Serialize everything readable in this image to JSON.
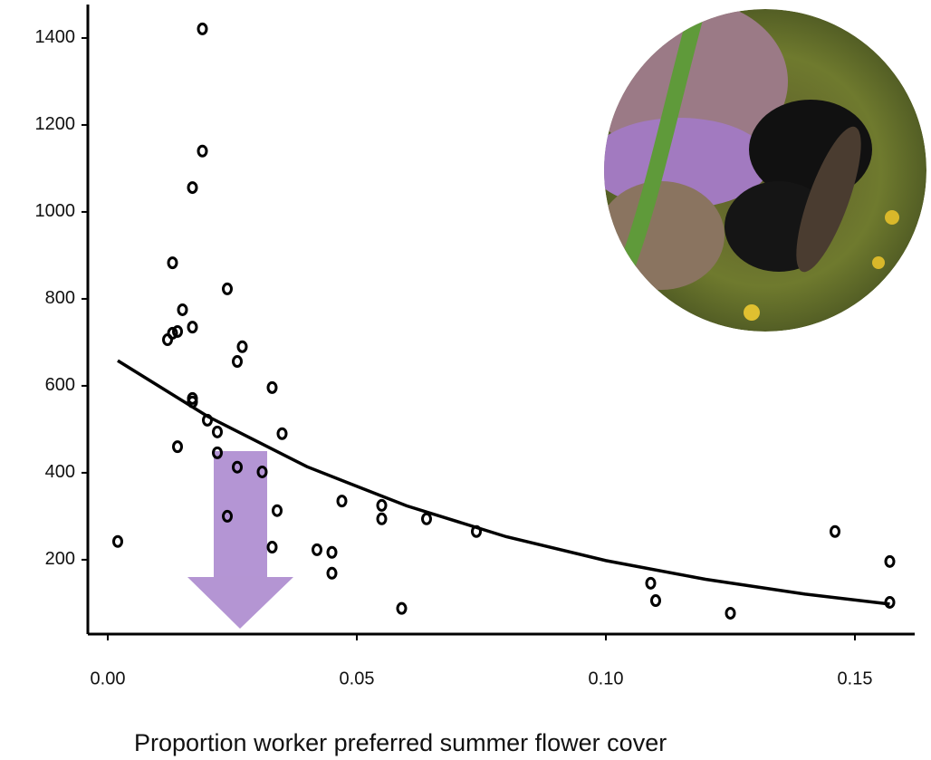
{
  "chart_data": {
    "type": "scatter",
    "x_label": "Proportion worker preferred summer flower cover",
    "x": [
      0.002,
      0.019,
      0.019,
      0.017,
      0.013,
      0.024,
      0.015,
      0.012,
      0.013,
      0.014,
      0.017,
      0.027,
      0.026,
      0.033,
      0.017,
      0.017,
      0.02,
      0.022,
      0.035,
      0.014,
      0.022,
      0.026,
      0.031,
      0.047,
      0.055,
      0.055,
      0.034,
      0.024,
      0.064,
      0.074,
      0.033,
      0.042,
      0.045,
      0.045,
      0.059,
      0.109,
      0.11,
      0.125,
      0.146,
      0.157,
      0.157
    ],
    "values": [
      242,
      1421,
      1140,
      1056,
      883,
      823,
      775,
      706,
      721,
      725,
      735,
      690,
      656,
      596,
      571,
      563,
      521,
      494,
      490,
      460,
      446,
      413,
      402,
      335,
      325,
      294,
      313,
      300,
      294,
      265,
      229,
      223,
      217,
      169,
      88,
      146,
      106,
      77,
      265,
      196,
      102
    ],
    "color": "#000000",
    "fit": {
      "x": [
        0.002,
        0.02,
        0.04,
        0.06,
        0.08,
        0.1,
        0.12,
        0.14,
        0.157
      ],
      "values": [
        658,
        530,
        414,
        324,
        253,
        198,
        155,
        121,
        98
      ],
      "color": "#000000"
    },
    "xlim": [
      -0.004,
      0.162
    ],
    "ylim": [
      29,
      1477
    ],
    "xticks": [
      {
        "value": 0,
        "label": "0.00"
      },
      0.05,
      {
        "value": 0.1,
        "label": "0.10"
      },
      0.15
    ],
    "yticks": [
      200,
      400,
      600,
      800,
      1000,
      1200,
      1400
    ]
  }
}
